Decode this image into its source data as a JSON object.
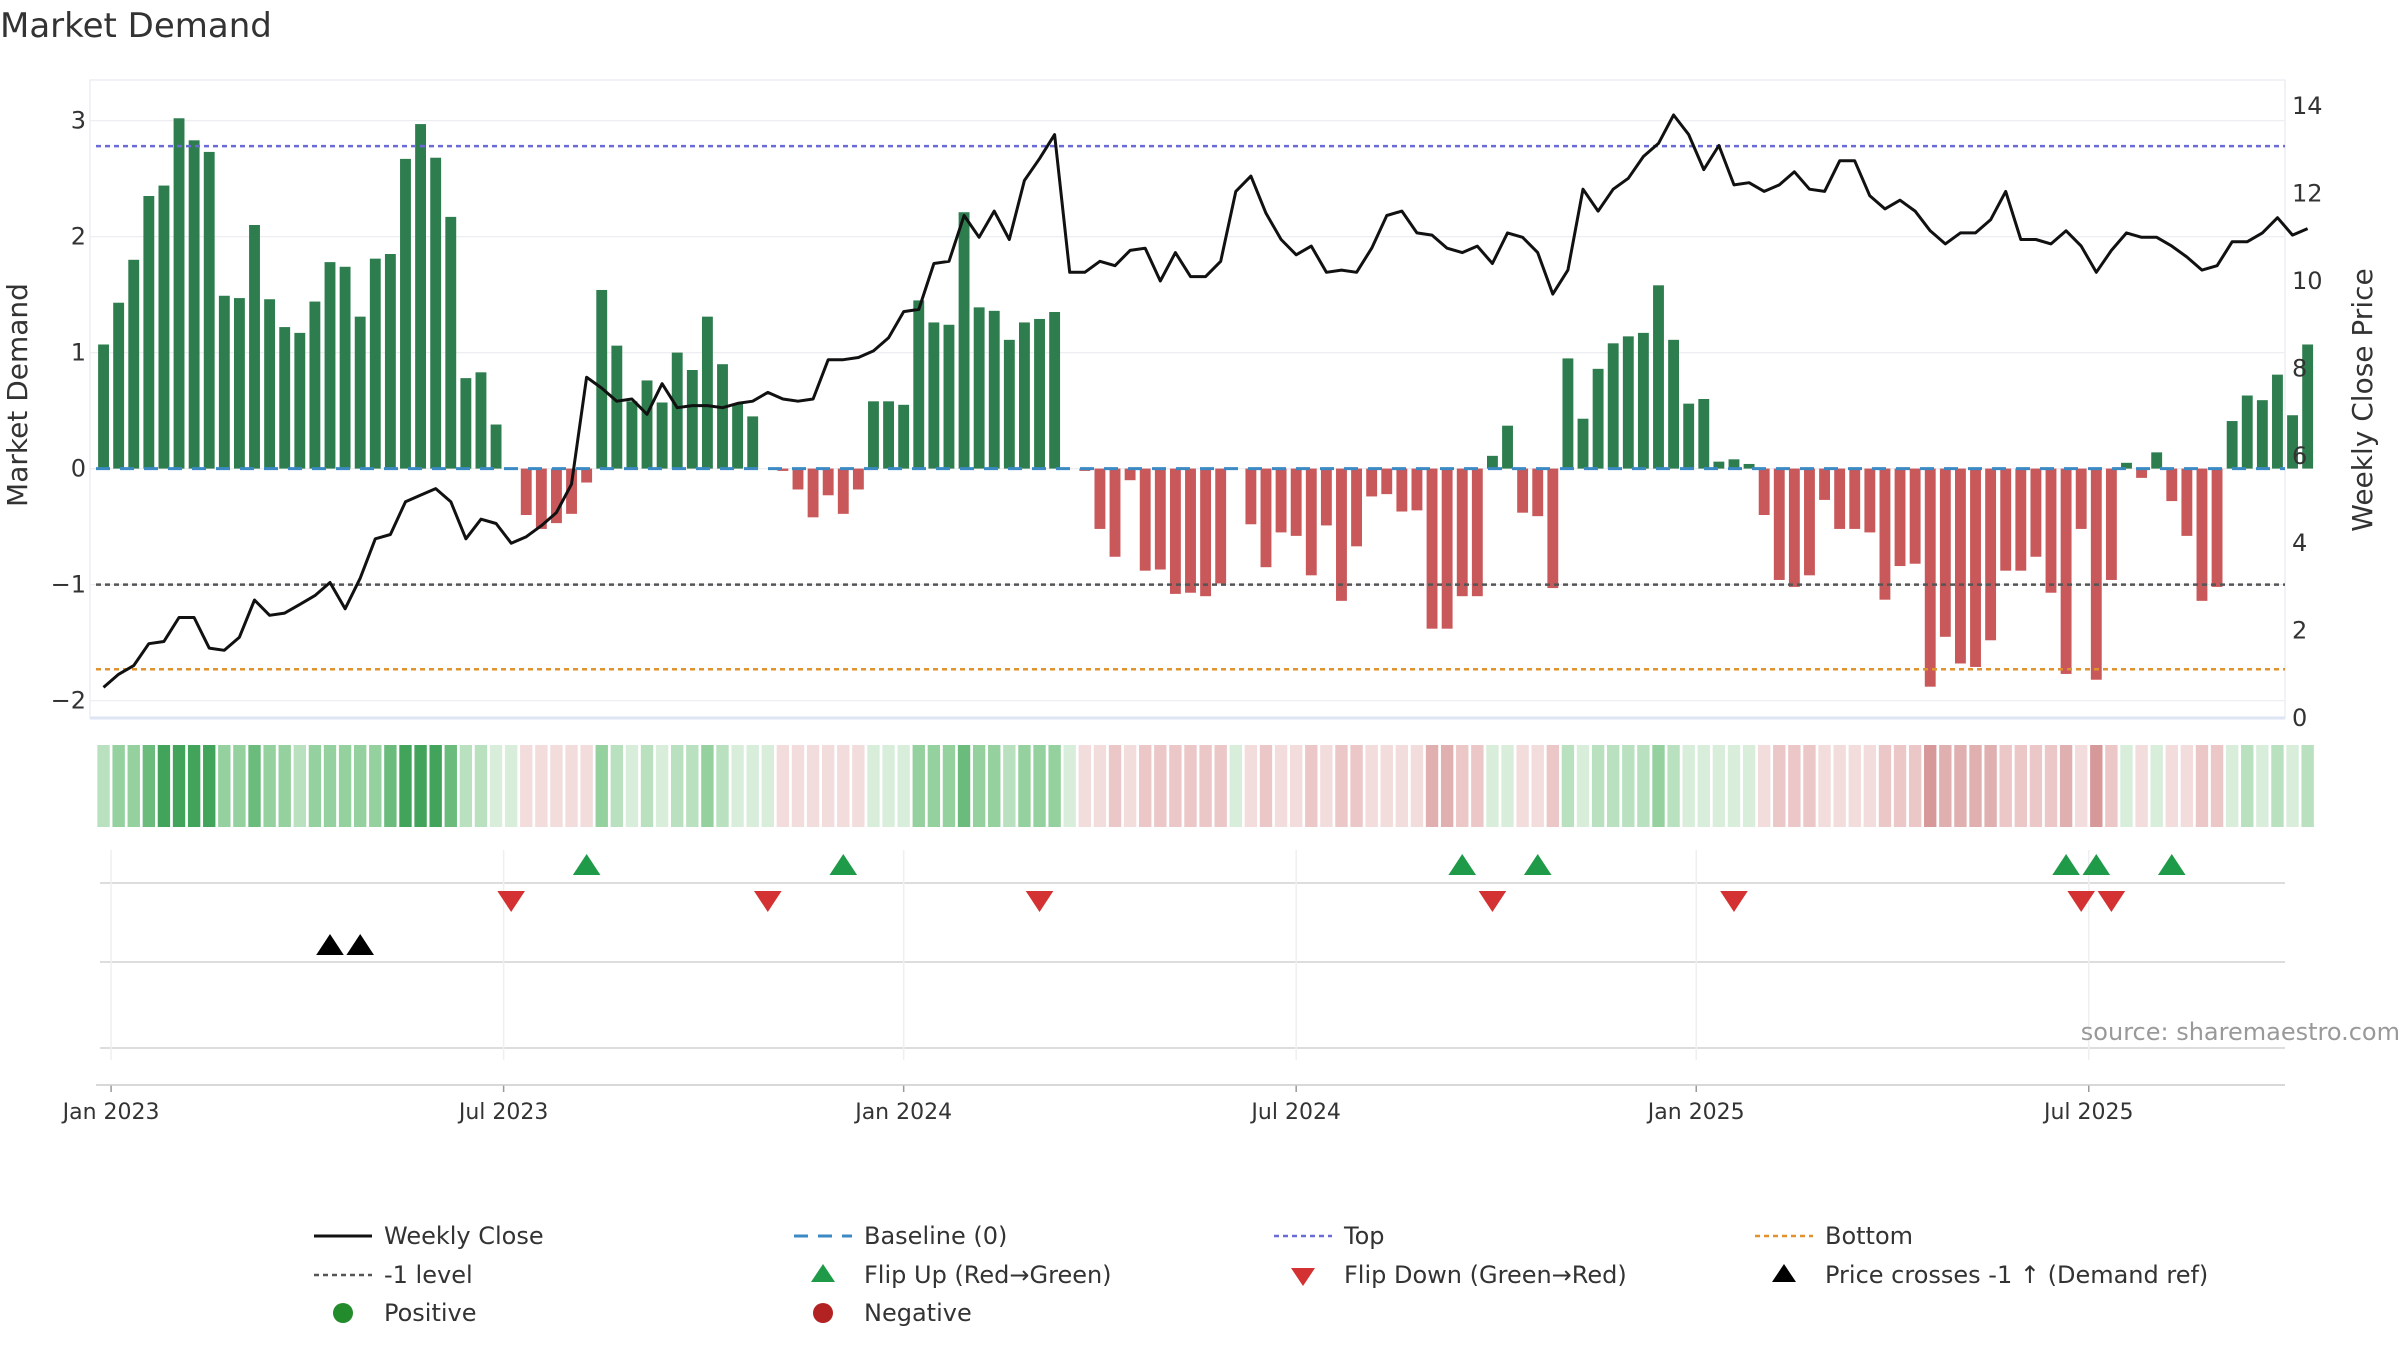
{
  "chart_data": {
    "type": "bar",
    "title": "Market Demand",
    "ylabel": "Market Demand",
    "y2label": "Weekly Close Price",
    "source": "source: sharemaestro.com",
    "ylim": [
      -2.15,
      3.35
    ],
    "y2lim": [
      0,
      14.6
    ],
    "yticks": [
      3,
      2,
      1,
      0,
      -1,
      -2
    ],
    "yticklabels": [
      "3",
      "2",
      "1",
      "0",
      "−1",
      "−2"
    ],
    "y2ticks": [
      14,
      12,
      10,
      8,
      6,
      4,
      2,
      0
    ],
    "y2ticklabels": [
      "14",
      "12",
      "10",
      "8",
      "6",
      "4",
      "2",
      "0"
    ],
    "xlabels": [
      {
        "week": 1,
        "label": "Jan 2023"
      },
      {
        "week": 27,
        "label": "Jul 2023"
      },
      {
        "week": 53.5,
        "label": "Jan 2024"
      },
      {
        "week": 79.5,
        "label": "Jul 2024"
      },
      {
        "week": 106,
        "label": "Jan 2025"
      },
      {
        "week": 132,
        "label": "Jul 2025"
      }
    ],
    "num_weeks": 145,
    "reference_lines": {
      "top": 2.78,
      "bottom": -1.73,
      "minus_one": -1,
      "baseline": 0
    },
    "demand": [
      1.07,
      1.43,
      1.8,
      2.35,
      2.44,
      3.02,
      2.83,
      2.73,
      1.49,
      1.47,
      2.1,
      1.46,
      1.22,
      1.17,
      1.44,
      1.78,
      1.74,
      1.31,
      1.81,
      1.85,
      2.67,
      2.97,
      2.68,
      2.17,
      0.78,
      0.83,
      0.38,
      0,
      -0.4,
      -0.52,
      -0.47,
      -0.39,
      -0.12,
      1.54,
      1.06,
      0.58,
      0.76,
      0.57,
      1,
      0.85,
      1.31,
      0.9,
      0.56,
      0.45,
      0,
      -0.02,
      -0.18,
      -0.42,
      -0.23,
      -0.39,
      -0.18,
      0.58,
      0.58,
      0.55,
      1.45,
      1.26,
      1.24,
      2.21,
      1.39,
      1.36,
      1.11,
      1.26,
      1.29,
      1.35,
      0,
      -0.02,
      -0.52,
      -0.76,
      -0.1,
      -0.88,
      -0.87,
      -1.08,
      -1.07,
      -1.1,
      -0.99,
      0,
      -0.48,
      -0.85,
      -0.55,
      -0.58,
      -0.92,
      -0.49,
      -1.14,
      -0.67,
      -0.24,
      -0.22,
      -0.37,
      -0.36,
      -1.38,
      -1.38,
      -1.1,
      -1.1,
      0.11,
      0.37,
      -0.38,
      -0.41,
      -1.03,
      0.95,
      0.43,
      0.86,
      1.08,
      1.14,
      1.17,
      1.58,
      1.11,
      0.56,
      0.6,
      0.06,
      0.08,
      0.04,
      -0.4,
      -0.96,
      -1.02,
      -0.92,
      -0.27,
      -0.52,
      -0.52,
      -0.55,
      -1.13,
      -0.84,
      -0.82,
      -1.88,
      -1.45,
      -1.68,
      -1.71,
      -1.48,
      -0.88,
      -0.88,
      -0.76,
      -1.07,
      -1.77,
      -0.52,
      -1.82,
      -0.96,
      0.05,
      -0.08,
      0.14,
      -0.28,
      -0.58,
      -1.14,
      -1.02,
      0.41,
      0.63,
      0.59,
      0.81,
      0.46,
      1.07
    ],
    "weekly_close": [
      0.7,
      1,
      1.2,
      1.7,
      1.75,
      2.3,
      2.3,
      1.6,
      1.55,
      1.85,
      2.7,
      2.35,
      2.4,
      2.6,
      2.8,
      3.1,
      2.5,
      3.2,
      4.1,
      4.2,
      4.95,
      5.1,
      5.25,
      4.95,
      4.1,
      4.55,
      4.45,
      4,
      4.15,
      4.4,
      4.7,
      5.35,
      7.8,
      7.55,
      7.25,
      7.3,
      6.95,
      7.65,
      7.1,
      7.15,
      7.15,
      7.1,
      7.2,
      7.25,
      7.45,
      7.3,
      7.25,
      7.3,
      8.2,
      8.2,
      8.25,
      8.4,
      8.7,
      9.3,
      9.35,
      10.4,
      10.45,
      11.5,
      11,
      11.6,
      10.95,
      12.3,
      12.8,
      13.35,
      10.2,
      10.2,
      10.45,
      10.35,
      10.7,
      10.75,
      10,
      10.65,
      10.1,
      10.1,
      10.45,
      12.05,
      12.4,
      11.55,
      10.95,
      10.6,
      10.8,
      10.2,
      10.25,
      10.2,
      10.75,
      11.5,
      11.6,
      11.1,
      11.05,
      10.75,
      10.65,
      10.8,
      10.4,
      11.1,
      11,
      10.65,
      9.7,
      10.25,
      12.1,
      11.6,
      12.1,
      12.35,
      12.85,
      13.15,
      13.8,
      13.35,
      12.55,
      13.1,
      12.2,
      12.25,
      12.05,
      12.2,
      12.5,
      12.1,
      12.05,
      12.75,
      12.75,
      11.95,
      11.65,
      11.85,
      11.6,
      11.15,
      10.85,
      11.1,
      11.1,
      11.4,
      12.05,
      10.95,
      10.95,
      10.85,
      11.15,
      10.8,
      10.2,
      10.7,
      11.1,
      11,
      11,
      10.8,
      10.55,
      10.25,
      10.35,
      10.9,
      10.9,
      11.1,
      11.45,
      11.05,
      11.2
    ],
    "heatmap_palette": {
      "positive": [
        "#d8eedb",
        "#b9e0bf",
        "#95d09f",
        "#6bbb7d",
        "#42a45a"
      ],
      "negative": [
        "#f3dcdc",
        "#ebc7c7",
        "#e0b0b0",
        "#d69898",
        "#cc8484"
      ]
    },
    "flip_up_weeks": [
      32,
      49,
      90,
      95,
      130,
      132,
      137
    ],
    "flip_down_weeks": [
      27,
      44,
      62,
      92,
      108,
      131,
      133
    ],
    "price_cross_weeks": [
      15,
      17
    ],
    "colors": {
      "positive_bar": "#2e7d4f",
      "negative_bar": "#c9585a",
      "weekly_close": "#111111",
      "baseline": "#3b8ac4",
      "top": "#6b6bd6",
      "bottom": "#e0922e",
      "minus_one": "#555555",
      "flip_up": "#1f9a48",
      "flip_down": "#d43232",
      "price_cross": "#000000",
      "positive_dot": "#228b2b",
      "negative_dot": "#b22222"
    },
    "legend": [
      {
        "key": "weekly_close",
        "label": "Weekly Close",
        "marker": "line"
      },
      {
        "key": "baseline",
        "label": "Baseline (0)",
        "marker": "dashed"
      },
      {
        "key": "top",
        "label": "Top",
        "marker": "dotted"
      },
      {
        "key": "bottom",
        "label": "Bottom",
        "marker": "dotted"
      },
      {
        "key": "minus_one",
        "label": "-1 level",
        "marker": "dotted"
      },
      {
        "key": "flip_up",
        "label": "Flip Up (Red→Green)",
        "marker": "triangle-up"
      },
      {
        "key": "flip_down",
        "label": "Flip Down (Green→Red)",
        "marker": "triangle-down"
      },
      {
        "key": "price_cross",
        "label": "Price crosses -1 ↑ (Demand ref)",
        "marker": "triangle-up"
      },
      {
        "key": "positive_dot",
        "label": "Positive",
        "marker": "circle"
      },
      {
        "key": "negative_dot",
        "label": "Negative",
        "marker": "circle"
      }
    ]
  }
}
